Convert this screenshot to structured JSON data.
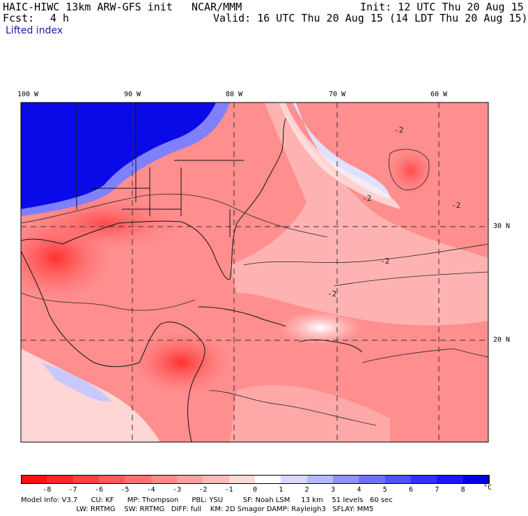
{
  "header": {
    "model": "HAIC-HIWC 13km ARW-GFS init",
    "org": "NCAR/MMM",
    "init": "Init: 12 UTC Thu 20 Aug 15",
    "fcst_label": "Fcst:",
    "fcst_value": "4 h",
    "valid": "Valid: 16 UTC Thu 20 Aug 15 (14 LDT Thu 20 Aug 15)",
    "field": "Lifted index"
  },
  "map": {
    "lon_labels": [
      "100 W",
      "90 W",
      "80 W",
      "70 W",
      "60 W"
    ],
    "lat_labels": [
      "30 N",
      "20 N"
    ],
    "contour_labels": [
      "-2",
      "-2",
      "-2",
      "-2",
      "-2"
    ]
  },
  "colorbar": {
    "ticks": [
      "-8",
      "-7",
      "-6",
      "-5",
      "-4",
      "-3",
      "-2",
      "-1",
      "0",
      "1",
      "2",
      "3",
      "4",
      "5",
      "6",
      "7",
      "8"
    ],
    "unit": "°C",
    "colors": [
      "#ff1010",
      "#ff2828",
      "#ff4040",
      "#ff5858",
      "#ff7070",
      "#ff8888",
      "#ffa0a0",
      "#ffb8b8",
      "#ffd8d8",
      "#ffffff",
      "#d8d8ff",
      "#b8b8ff",
      "#9090ff",
      "#7070ff",
      "#5050ff",
      "#3030ff",
      "#1818ff",
      "#0000e8"
    ]
  },
  "model_info": {
    "line1": "Model Info: V3.7      CU: KF      MP: Thompson      PBL: YSU         SF: Noah LSM     13 km    51 levels   60 sec",
    "line2": "                         LW: RRTMG    SW: RRTMG   DIFF: full    KM: 2D Smagor DAMP: Rayleigh3   SFLAY: MM5"
  }
}
